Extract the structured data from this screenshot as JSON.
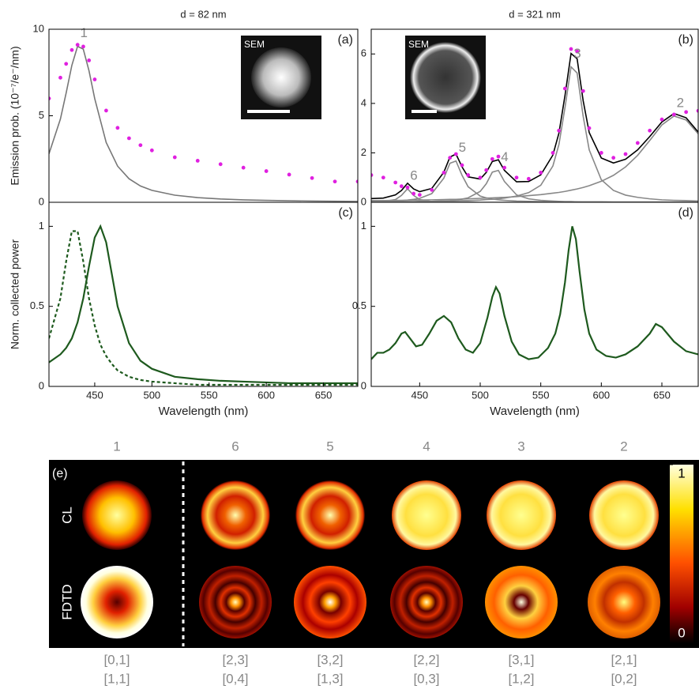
{
  "chart_data": [
    {
      "type": "line",
      "title": "d = 82 nm",
      "label": "(a)",
      "ylabel": "Emission prob. (10⁻⁷/e⁻/nm)",
      "inset": "SEM",
      "x": [
        410,
        420,
        425,
        430,
        435,
        440,
        445,
        450,
        460,
        470,
        480,
        490,
        500,
        520,
        540,
        560,
        580,
        600,
        620,
        640,
        660,
        680
      ],
      "xlim": [
        410,
        680
      ],
      "ylim": [
        0,
        10
      ],
      "yticks": [
        0,
        5,
        10
      ],
      "series": [
        {
          "label": "1",
          "color": "#777777",
          "values": [
            2.8,
            4.81,
            6.31,
            7.91,
            9.01,
            8.85,
            7.6,
            5.99,
            3.46,
            2.09,
            1.36,
            0.94,
            0.69,
            0.41,
            0.27,
            0.19,
            0.14,
            0.11,
            0.09,
            0.07,
            0.06,
            0.05
          ]
        },
        {
          "color": "#e020e0",
          "style": "dots",
          "values": [
            6.0,
            7.2,
            8.0,
            8.8,
            9.1,
            9.0,
            8.2,
            7.1,
            5.3,
            4.3,
            3.7,
            3.3,
            3.0,
            2.6,
            2.4,
            2.2,
            2.0,
            1.8,
            1.6,
            1.4,
            1.2,
            1.2
          ]
        }
      ]
    },
    {
      "type": "line",
      "title": "d = 321 nm",
      "label": "(b)",
      "inset": "SEM",
      "x": [
        410,
        420,
        430,
        435,
        440,
        445,
        450,
        460,
        470,
        475,
        480,
        485,
        490,
        500,
        505,
        510,
        515,
        520,
        530,
        540,
        550,
        560,
        565,
        570,
        575,
        580,
        585,
        590,
        600,
        610,
        620,
        630,
        640,
        650,
        660,
        670,
        680
      ],
      "xlim": [
        410,
        680
      ],
      "ylim": [
        0,
        7
      ],
      "yticks": [
        0,
        2,
        4,
        6
      ],
      "series": [
        {
          "label": "6",
          "color": "#888888",
          "values": [
            0.02,
            0.03,
            0.11,
            0.28,
            0.55,
            0.28,
            0.11,
            0.03,
            0.02,
            0.01,
            0.01,
            0.01,
            0.01,
            0,
            0,
            0,
            0,
            0,
            0,
            0,
            0,
            0,
            0,
            0,
            0,
            0,
            0,
            0,
            0,
            0,
            0,
            0,
            0,
            0,
            0,
            0,
            0
          ]
        },
        {
          "label": "5",
          "color": "#888888",
          "values": [
            0.03,
            0.04,
            0.06,
            0.07,
            0.09,
            0.12,
            0.16,
            0.35,
            0.98,
            1.58,
            1.67,
            1.09,
            0.63,
            0.25,
            0.18,
            0.13,
            0.1,
            0.08,
            0.05,
            0.04,
            0.03,
            0.02,
            0.02,
            0.02,
            0.02,
            0.02,
            0.01,
            0.01,
            0.01,
            0.01,
            0.01,
            0.01,
            0.01,
            0.01,
            0.01,
            0.01,
            0.01
          ]
        },
        {
          "label": "4",
          "color": "#888888",
          "values": [
            0.01,
            0.01,
            0.02,
            0.02,
            0.02,
            0.02,
            0.03,
            0.04,
            0.06,
            0.07,
            0.09,
            0.13,
            0.18,
            0.44,
            0.75,
            1.22,
            1.29,
            0.84,
            0.3,
            0.14,
            0.08,
            0.05,
            0.04,
            0.03,
            0.03,
            0.02,
            0.02,
            0.02,
            0.02,
            0.01,
            0.01,
            0.01,
            0.01,
            0.01,
            0.01,
            0.01,
            0.01
          ]
        },
        {
          "label": "3",
          "color": "#888888",
          "values": [
            0.02,
            0.02,
            0.03,
            0.03,
            0.03,
            0.03,
            0.04,
            0.04,
            0.05,
            0.05,
            0.06,
            0.07,
            0.07,
            0.09,
            0.11,
            0.12,
            0.14,
            0.17,
            0.25,
            0.39,
            0.69,
            1.47,
            2.34,
            3.83,
            5.48,
            5.23,
            3.48,
            2.12,
            0.91,
            0.48,
            0.29,
            0.2,
            0.14,
            0.1,
            0.08,
            0.07,
            0.05
          ]
        },
        {
          "label": "2",
          "color": "#888888",
          "values": [
            0.07,
            0.07,
            0.08,
            0.08,
            0.08,
            0.09,
            0.09,
            0.1,
            0.11,
            0.12,
            0.12,
            0.13,
            0.14,
            0.16,
            0.17,
            0.18,
            0.19,
            0.2,
            0.23,
            0.27,
            0.31,
            0.37,
            0.4,
            0.44,
            0.49,
            0.54,
            0.6,
            0.67,
            0.85,
            1.09,
            1.43,
            1.9,
            2.5,
            3.13,
            3.49,
            3.33,
            2.77
          ]
        },
        {
          "color": "#000000",
          "values": [
            0.15,
            0.17,
            0.3,
            0.48,
            0.77,
            0.54,
            0.43,
            0.56,
            1.22,
            1.83,
            1.95,
            1.43,
            1.03,
            0.94,
            1.21,
            1.65,
            1.72,
            1.29,
            0.83,
            0.84,
            1.11,
            1.91,
            2.8,
            4.32,
            6.02,
            5.81,
            4.11,
            2.82,
            1.79,
            1.59,
            1.74,
            2.12,
            2.66,
            3.25,
            3.59,
            3.42,
            2.84
          ]
        },
        {
          "color": "#e020e0",
          "style": "dots",
          "values": [
            1.1,
            1.0,
            0.8,
            0.65,
            0.6,
            0.35,
            0.3,
            0.5,
            1.2,
            1.8,
            1.95,
            1.5,
            1.1,
            1.0,
            1.3,
            1.75,
            1.85,
            1.4,
            1.0,
            0.95,
            1.2,
            2.0,
            2.9,
            4.6,
            6.2,
            6.1,
            4.5,
            3.0,
            2.0,
            1.8,
            1.95,
            2.4,
            2.9,
            3.35,
            3.55,
            3.65,
            3.7
          ]
        }
      ]
    },
    {
      "type": "line",
      "label": "(c)",
      "ylabel": "Norm. collected power",
      "xlabel": "Wavelength (nm)",
      "x": [
        410,
        420,
        425,
        430,
        435,
        440,
        445,
        450,
        455,
        460,
        465,
        470,
        480,
        490,
        500,
        520,
        540,
        560,
        580,
        600,
        620,
        640,
        660,
        680
      ],
      "xlim": [
        410,
        680
      ],
      "ylim": [
        0,
        1.15
      ],
      "yticks": [
        0,
        0.5,
        1
      ],
      "xticks": [
        450,
        500,
        550,
        600,
        650
      ],
      "series": [
        {
          "color": "#1e5a1e",
          "style": "dashed",
          "values": [
            0.3,
            0.55,
            0.78,
            0.97,
            0.97,
            0.78,
            0.55,
            0.38,
            0.26,
            0.19,
            0.14,
            0.1,
            0.06,
            0.04,
            0.03,
            0.02,
            0.01,
            0.01,
            0.01,
            0.01,
            0.01,
            0.01,
            0.01,
            0.01
          ]
        },
        {
          "color": "#1e5a1e",
          "values": [
            0.15,
            0.2,
            0.24,
            0.3,
            0.4,
            0.55,
            0.75,
            0.93,
            1.0,
            0.9,
            0.7,
            0.5,
            0.27,
            0.16,
            0.11,
            0.06,
            0.045,
            0.035,
            0.03,
            0.025,
            0.02,
            0.02,
            0.02,
            0.02
          ]
        }
      ]
    },
    {
      "type": "line",
      "label": "(d)",
      "xlabel": "Wavelength (nm)",
      "x": [
        410,
        415,
        420,
        425,
        430,
        435,
        438,
        442,
        447,
        452,
        458,
        464,
        470,
        476,
        482,
        488,
        494,
        500,
        506,
        510,
        513,
        516,
        520,
        526,
        532,
        540,
        548,
        556,
        562,
        566,
        570,
        573,
        576,
        579,
        582,
        586,
        590,
        596,
        604,
        612,
        620,
        630,
        640,
        645,
        650,
        660,
        670,
        680
      ],
      "xlim": [
        410,
        680
      ],
      "ylim": [
        0,
        1.15
      ],
      "yticks": [
        0,
        0.5,
        1
      ],
      "xticks": [
        450,
        500,
        550,
        600,
        650
      ],
      "series": [
        {
          "color": "#1e5a1e",
          "values": [
            0.17,
            0.21,
            0.21,
            0.23,
            0.27,
            0.33,
            0.34,
            0.3,
            0.25,
            0.26,
            0.33,
            0.41,
            0.44,
            0.4,
            0.3,
            0.23,
            0.21,
            0.27,
            0.43,
            0.56,
            0.62,
            0.58,
            0.44,
            0.28,
            0.2,
            0.17,
            0.18,
            0.24,
            0.33,
            0.45,
            0.65,
            0.85,
            1.0,
            0.92,
            0.72,
            0.48,
            0.33,
            0.23,
            0.19,
            0.18,
            0.2,
            0.25,
            0.33,
            0.39,
            0.37,
            0.28,
            0.22,
            0.2
          ]
        }
      ]
    }
  ],
  "panel_e": {
    "label": "(e)",
    "columns": [
      "1",
      "6",
      "5",
      "4",
      "3",
      "2"
    ],
    "rows": [
      "CL",
      "FDTD"
    ],
    "modes": [
      [
        "[0,1]",
        "[1,1]"
      ],
      [
        "[2,3]",
        "[0,4]"
      ],
      [
        "[3,2]",
        "[1,3]"
      ],
      [
        "[2,2]",
        "[0,3]"
      ],
      [
        "[3,1]",
        "[1,2]"
      ],
      [
        "[2,1]",
        "[0,2]"
      ]
    ],
    "colorbar_ticks": [
      0,
      1
    ]
  }
}
